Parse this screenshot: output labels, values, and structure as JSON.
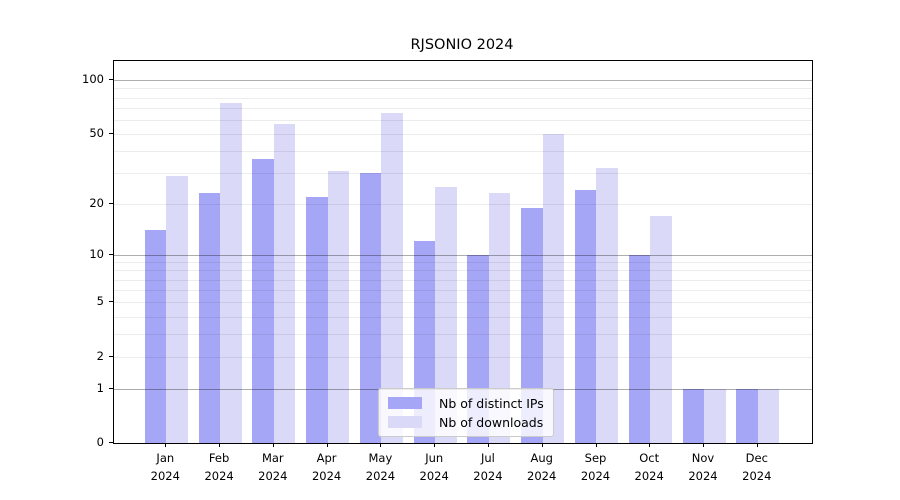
{
  "chart_data": {
    "type": "bar",
    "title": "RJSONIO 2024",
    "categories": [
      "Jan",
      "Feb",
      "Mar",
      "Apr",
      "May",
      "Jun",
      "Jul",
      "Aug",
      "Sep",
      "Oct",
      "Nov",
      "Dec"
    ],
    "category_year": "2024",
    "series": [
      {
        "name": "Nb of distinct IPs",
        "color": "#a6a6f7",
        "values": [
          14,
          23,
          36,
          22,
          30,
          12,
          10,
          19,
          24,
          10,
          1,
          1
        ]
      },
      {
        "name": "Nb of downloads",
        "color": "#dadaf8",
        "values": [
          29,
          75,
          57,
          31,
          66,
          25,
          23,
          50,
          32,
          17,
          1,
          1
        ]
      }
    ],
    "xlabel": "",
    "ylabel": "",
    "yscale": "log1p",
    "ylim": [
      0,
      128
    ],
    "yticks": [
      0,
      1,
      2,
      5,
      10,
      20,
      50,
      100
    ],
    "major_gridlines": [
      1,
      10,
      100
    ],
    "minor_gridlines": [
      2,
      3,
      4,
      5,
      6,
      7,
      8,
      9,
      20,
      30,
      40,
      50,
      60,
      70,
      80,
      90
    ],
    "grid": "horizontal",
    "legend_position": "bottom-center",
    "axis_color": "#000000",
    "major_grid_color": "#b2b2b2",
    "minor_grid_color": "#e9e9e9"
  }
}
